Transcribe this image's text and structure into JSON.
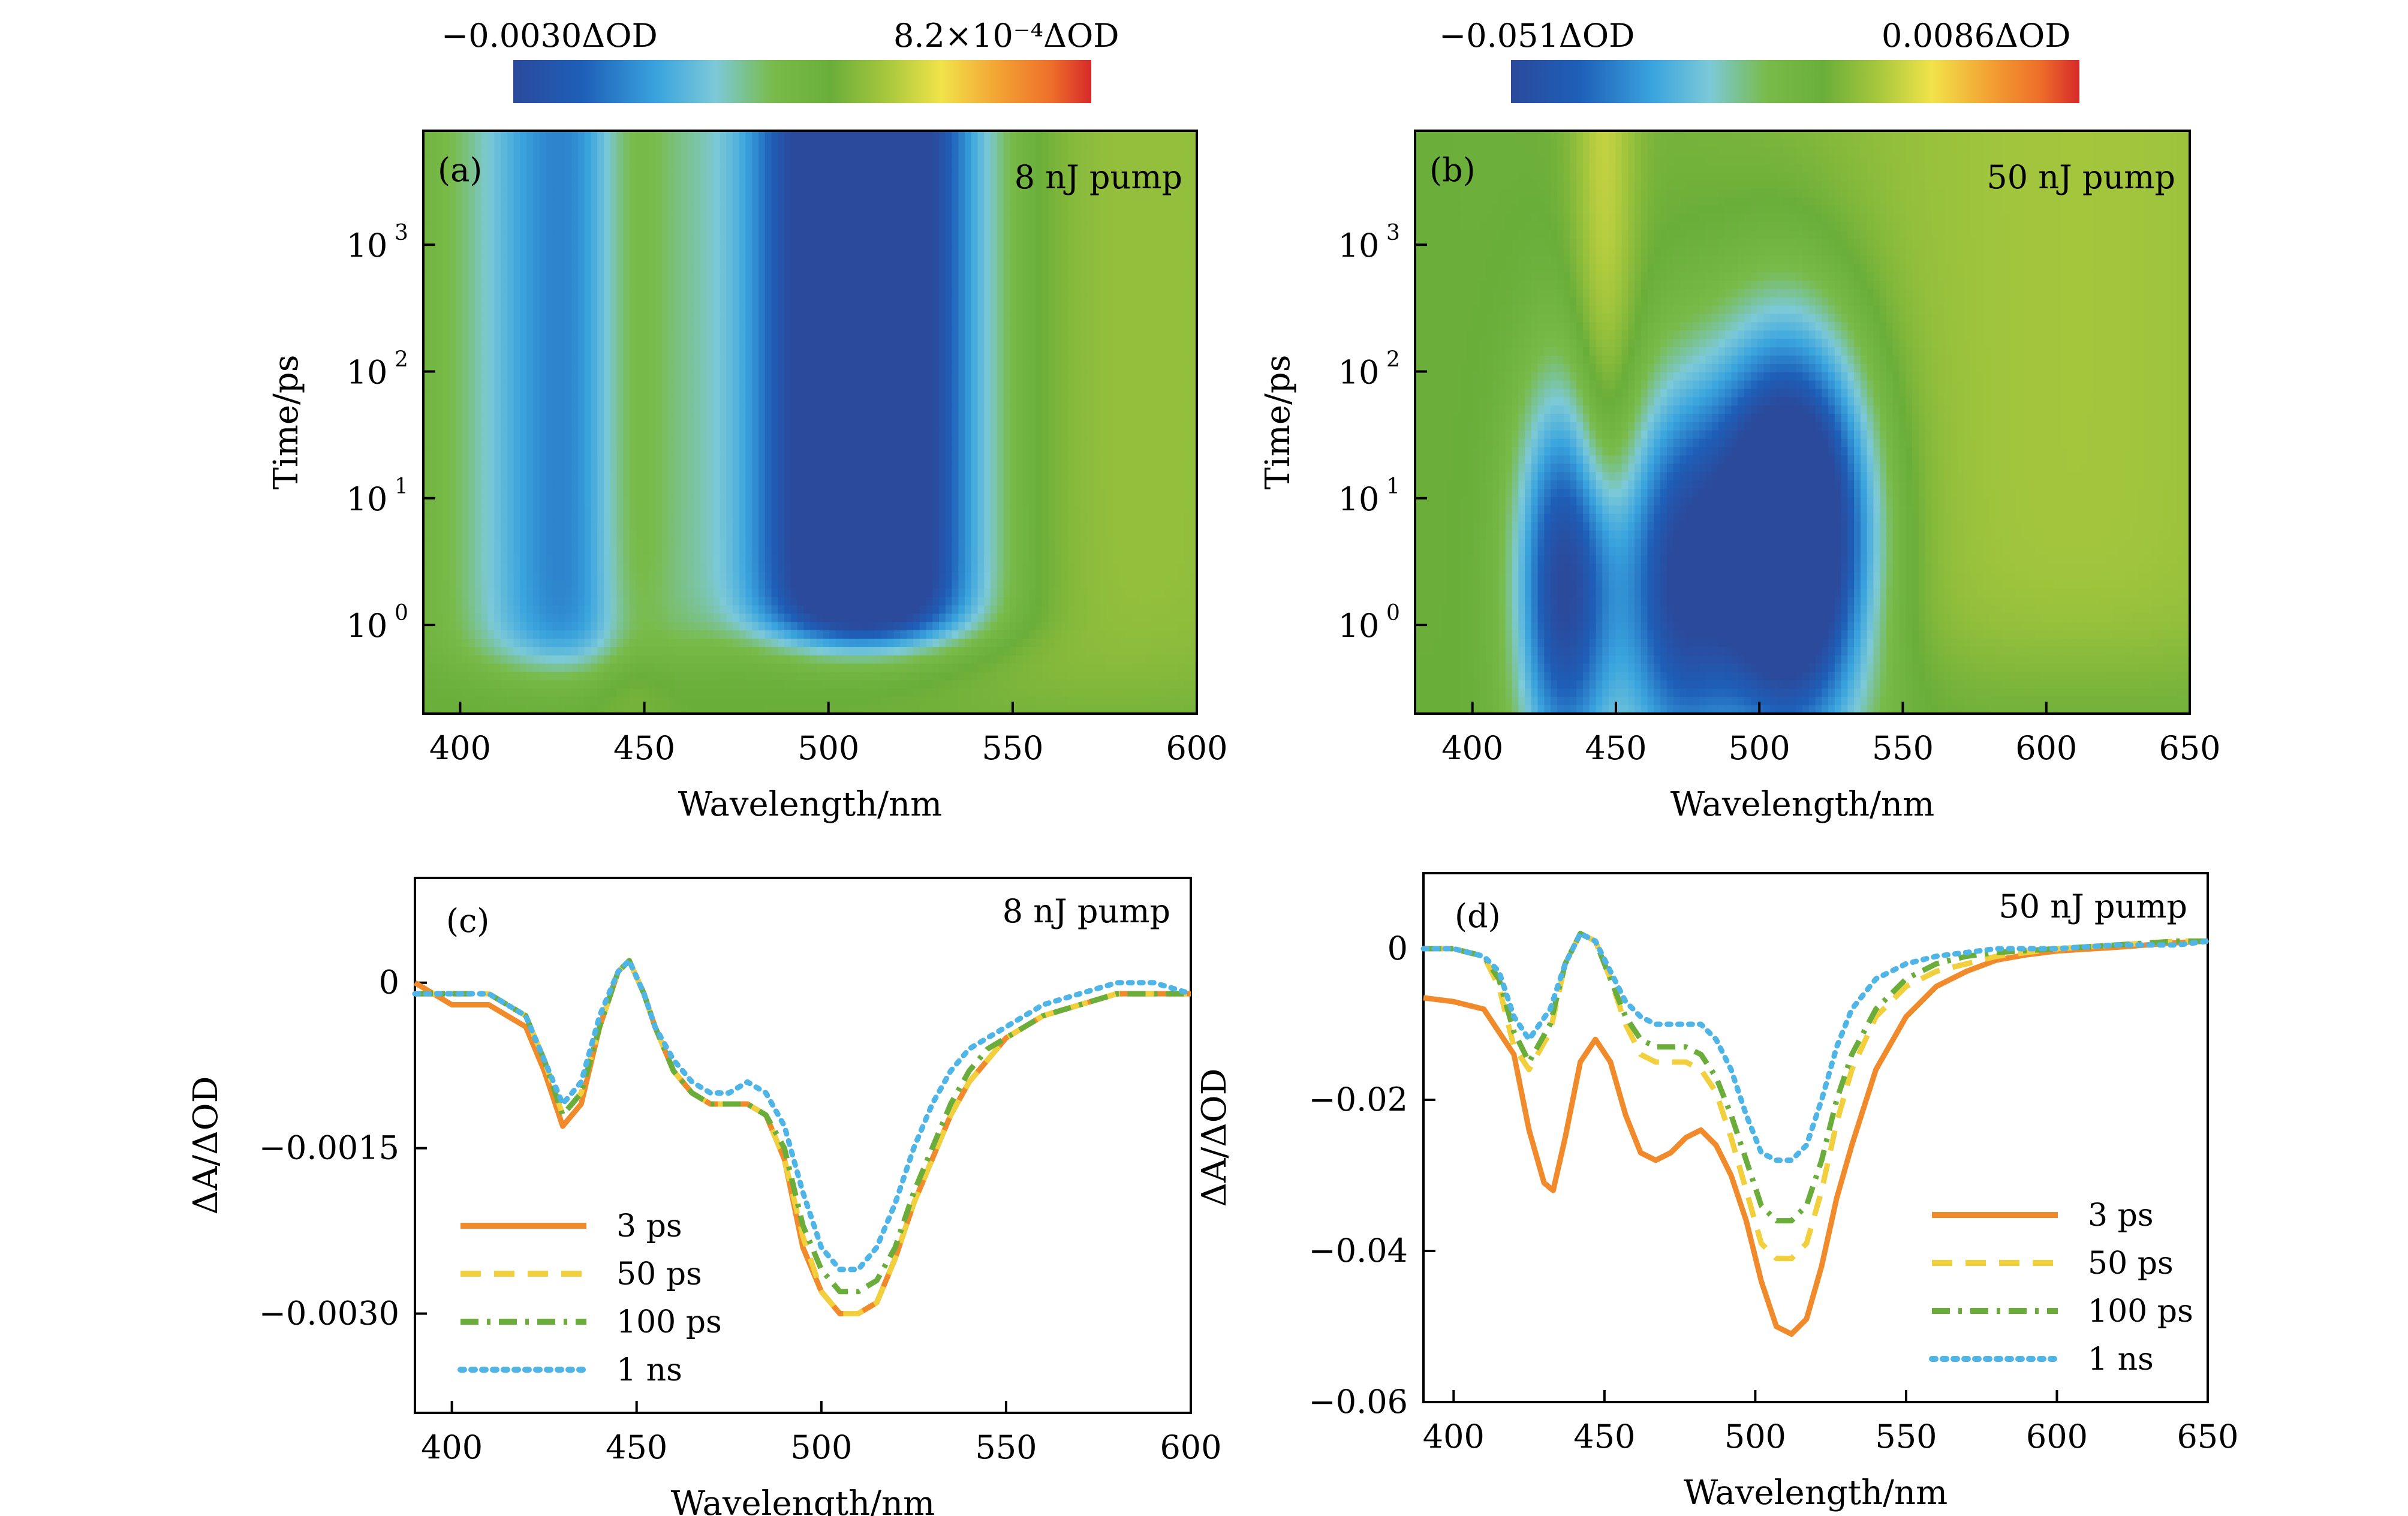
{
  "chart_data": [
    {
      "panel": "(a)",
      "type": "heatmap",
      "annotation": "8 nJ pump",
      "xlabel": "Wavelength/nm",
      "ylabel": "Time/ps",
      "xlim": [
        390,
        600
      ],
      "ylim_log10": [
        -0.7,
        3.9
      ],
      "y_scale": "log",
      "xticks": [
        400,
        450,
        500,
        550,
        600
      ],
      "yticks": [
        {
          "value": 1,
          "base": "10",
          "exp": "0"
        },
        {
          "value": 10,
          "base": "10",
          "exp": "1"
        },
        {
          "value": 100,
          "base": "10",
          "exp": "2"
        },
        {
          "value": 1000,
          "base": "10",
          "exp": "3"
        }
      ],
      "colorbar": {
        "min_label": "−0.0030ΔOD",
        "max_label": "8.2×10⁻⁴ΔOD",
        "min": -0.003,
        "max": 0.00082
      },
      "features": [
        {
          "kind": "bleach",
          "center_nm": 510,
          "width_nm": 22,
          "t_start_ps": 0.8,
          "depth": -0.003
        },
        {
          "kind": "bleach",
          "center_nm": 430,
          "width_nm": 20,
          "t_start_ps": 0.5,
          "depth": -0.0013
        },
        {
          "kind": "absorption",
          "center_nm": 446,
          "width_nm": 8,
          "t_start_ps": 0.5,
          "height": 0.0006
        },
        {
          "kind": "absorption",
          "center_nm": 575,
          "width_nm": 50,
          "t_start_ps": 0.3,
          "height": 0.0003
        }
      ]
    },
    {
      "panel": "(b)",
      "type": "heatmap",
      "annotation": "50 nJ pump",
      "xlabel": "Wavelength/nm",
      "ylabel": "Time/ps",
      "xlim": [
        380,
        650
      ],
      "ylim_log10": [
        -0.7,
        3.9
      ],
      "y_scale": "log",
      "xticks": [
        400,
        450,
        500,
        550,
        600,
        650
      ],
      "yticks": [
        {
          "value": 1,
          "base": "10",
          "exp": "0"
        },
        {
          "value": 10,
          "base": "10",
          "exp": "1"
        },
        {
          "value": 100,
          "base": "10",
          "exp": "2"
        },
        {
          "value": 1000,
          "base": "10",
          "exp": "3"
        }
      ],
      "colorbar": {
        "min_label": "−0.051ΔOD",
        "max_label": "0.0086ΔOD",
        "min": -0.051,
        "max": 0.0086
      },
      "features": [
        {
          "kind": "bleach",
          "center_nm": 510,
          "width_nm": 20,
          "t_peak_ps": 5,
          "depth": -0.051
        },
        {
          "kind": "bleach",
          "center_nm": 432,
          "width_nm": 12,
          "t_peak_ps": 2,
          "depth": -0.03
        },
        {
          "kind": "bleach",
          "center_nm": 470,
          "width_nm": 14,
          "t_peak_ps": 2,
          "depth": -0.025
        },
        {
          "kind": "absorption",
          "center_nm": 446,
          "width_nm": 8,
          "t_start_ps": 10,
          "height": 0.008
        },
        {
          "kind": "absorption",
          "center_nm": 610,
          "width_nm": 80,
          "t_start_ps": 0.5,
          "height": 0.006
        }
      ]
    },
    {
      "panel": "(c)",
      "type": "line",
      "annotation": "8 nJ pump",
      "xlabel": "Wavelength/nm",
      "ylabel": "ΔA/ΔOD",
      "xlim": [
        390,
        600
      ],
      "ylim": [
        -0.0039,
        0.00095
      ],
      "xticks": [
        400,
        450,
        500,
        550,
        600
      ],
      "yticks": [
        {
          "value": 0,
          "label": "0"
        },
        {
          "value": -0.0015,
          "label": "−0.0015"
        },
        {
          "value": -0.003,
          "label": "−0.0030"
        }
      ],
      "legend_position": "lower-left",
      "series": [
        {
          "name": "3 ps",
          "color": "#f08a2a",
          "dash": "solid",
          "x": [
            390,
            400,
            405,
            410,
            415,
            420,
            425,
            430,
            435,
            440,
            445,
            448,
            452,
            455,
            460,
            465,
            470,
            475,
            480,
            485,
            490,
            495,
            500,
            505,
            510,
            515,
            520,
            525,
            530,
            535,
            540,
            545,
            550,
            560,
            570,
            580,
            590,
            600
          ],
          "y": [
            0.0,
            -0.0002,
            -0.0002,
            -0.0002,
            -0.0003,
            -0.0004,
            -0.0008,
            -0.0013,
            -0.0011,
            -0.0004,
            0.0001,
            0.0002,
            -0.0001,
            -0.0004,
            -0.0008,
            -0.001,
            -0.0011,
            -0.0011,
            -0.0011,
            -0.0012,
            -0.0016,
            -0.0024,
            -0.0028,
            -0.003,
            -0.003,
            -0.0029,
            -0.0025,
            -0.002,
            -0.0016,
            -0.0012,
            -0.0009,
            -0.0007,
            -0.0005,
            -0.0003,
            -0.0002,
            -0.0001,
            -0.0001,
            -0.0001
          ]
        },
        {
          "name": "50 ps",
          "color": "#f2cf3c",
          "dash": "dashed",
          "x": [
            390,
            400,
            405,
            410,
            415,
            420,
            425,
            430,
            435,
            440,
            445,
            448,
            452,
            455,
            460,
            465,
            470,
            475,
            480,
            485,
            490,
            495,
            500,
            505,
            510,
            515,
            520,
            525,
            530,
            535,
            540,
            545,
            550,
            560,
            570,
            580,
            590,
            600
          ],
          "y": [
            -0.0001,
            -0.0001,
            -0.0001,
            -0.0001,
            -0.0002,
            -0.0003,
            -0.0007,
            -0.0012,
            -0.001,
            -0.0004,
            0.0001,
            0.0002,
            -0.0001,
            -0.0004,
            -0.0008,
            -0.001,
            -0.0011,
            -0.0011,
            -0.0011,
            -0.0012,
            -0.0016,
            -0.0023,
            -0.0028,
            -0.003,
            -0.003,
            -0.0029,
            -0.0025,
            -0.002,
            -0.0016,
            -0.0012,
            -0.0009,
            -0.0007,
            -0.0005,
            -0.0003,
            -0.0002,
            -0.0001,
            -0.0001,
            -0.0001
          ]
        },
        {
          "name": "100 ps",
          "color": "#6aad3a",
          "dash": "dashdot",
          "x": [
            390,
            400,
            405,
            410,
            415,
            420,
            425,
            430,
            435,
            440,
            445,
            448,
            452,
            455,
            460,
            465,
            470,
            475,
            480,
            485,
            490,
            495,
            500,
            505,
            510,
            515,
            520,
            525,
            530,
            535,
            540,
            545,
            550,
            560,
            570,
            580,
            590,
            600
          ],
          "y": [
            -0.0001,
            -0.0001,
            -0.0001,
            -0.0001,
            -0.0002,
            -0.0003,
            -0.0007,
            -0.0012,
            -0.001,
            -0.0004,
            0.0001,
            0.0002,
            -0.0001,
            -0.0004,
            -0.0008,
            -0.001,
            -0.0011,
            -0.0011,
            -0.0011,
            -0.0012,
            -0.0015,
            -0.0022,
            -0.0026,
            -0.0028,
            -0.0028,
            -0.0027,
            -0.0024,
            -0.0019,
            -0.0015,
            -0.0011,
            -0.0008,
            -0.0006,
            -0.0005,
            -0.0003,
            -0.0002,
            -0.0001,
            -0.0001,
            -0.0001
          ]
        },
        {
          "name": "1 ns",
          "color": "#4fb5e6",
          "dash": "dotted",
          "x": [
            390,
            400,
            405,
            410,
            415,
            420,
            425,
            430,
            435,
            440,
            445,
            448,
            452,
            455,
            460,
            465,
            470,
            475,
            480,
            485,
            490,
            495,
            500,
            505,
            510,
            515,
            520,
            525,
            530,
            535,
            540,
            545,
            550,
            560,
            570,
            580,
            590,
            600
          ],
          "y": [
            -0.0001,
            -0.0001,
            -0.0001,
            -0.0001,
            -0.0002,
            -0.0003,
            -0.0007,
            -0.0011,
            -0.0009,
            -0.0003,
            0.0001,
            0.0002,
            -0.0001,
            -0.0004,
            -0.0007,
            -0.0009,
            -0.001,
            -0.001,
            -0.0009,
            -0.001,
            -0.0013,
            -0.0019,
            -0.0024,
            -0.0026,
            -0.0026,
            -0.0024,
            -0.002,
            -0.0015,
            -0.0011,
            -0.0008,
            -0.0006,
            -0.0005,
            -0.0004,
            -0.0002,
            -0.0001,
            0.0,
            0.0,
            -0.0001
          ]
        }
      ]
    },
    {
      "panel": "(d)",
      "type": "line",
      "annotation": "50 nJ pump",
      "xlabel": "Wavelength/nm",
      "ylabel": "ΔA/ΔOD",
      "xlim": [
        390,
        650
      ],
      "ylim": [
        -0.06,
        0.01
      ],
      "xticks": [
        400,
        450,
        500,
        550,
        600,
        650
      ],
      "yticks": [
        {
          "value": 0,
          "label": "0"
        },
        {
          "value": -0.02,
          "label": "−0.02"
        },
        {
          "value": -0.04,
          "label": "−0.04"
        },
        {
          "value": -0.06,
          "label": "−0.06"
        }
      ],
      "legend_position": "lower-right",
      "series": [
        {
          "name": "3 ps",
          "color": "#f08a2a",
          "dash": "solid",
          "x": [
            390,
            400,
            410,
            420,
            425,
            430,
            433,
            437,
            442,
            447,
            452,
            457,
            462,
            467,
            472,
            477,
            482,
            487,
            492,
            497,
            502,
            507,
            512,
            517,
            522,
            527,
            532,
            540,
            550,
            560,
            570,
            580,
            590,
            600,
            620,
            640,
            650
          ],
          "y": [
            -0.0065,
            -0.007,
            -0.008,
            -0.014,
            -0.024,
            -0.031,
            -0.032,
            -0.025,
            -0.015,
            -0.012,
            -0.015,
            -0.022,
            -0.027,
            -0.028,
            -0.027,
            -0.025,
            -0.024,
            -0.026,
            -0.03,
            -0.036,
            -0.044,
            -0.05,
            -0.051,
            -0.049,
            -0.042,
            -0.033,
            -0.026,
            -0.016,
            -0.009,
            -0.005,
            -0.003,
            -0.0015,
            -0.0008,
            -0.0003,
            0.0002,
            0.0008,
            0.001
          ]
        },
        {
          "name": "50 ps",
          "color": "#f2cf3c",
          "dash": "dashed",
          "x": [
            390,
            400,
            410,
            415,
            420,
            425,
            432,
            437,
            442,
            447,
            452,
            457,
            462,
            467,
            472,
            477,
            482,
            487,
            492,
            497,
            502,
            507,
            512,
            517,
            522,
            527,
            532,
            540,
            550,
            560,
            570,
            580,
            600,
            620,
            640,
            650
          ],
          "y": [
            0.0,
            0.0,
            -0.001,
            -0.005,
            -0.013,
            -0.016,
            -0.011,
            -0.002,
            0.002,
            0.001,
            -0.004,
            -0.01,
            -0.014,
            -0.015,
            -0.015,
            -0.015,
            -0.016,
            -0.019,
            -0.025,
            -0.032,
            -0.039,
            -0.041,
            -0.041,
            -0.039,
            -0.032,
            -0.023,
            -0.016,
            -0.009,
            -0.005,
            -0.003,
            -0.002,
            -0.001,
            0.0,
            0.0005,
            0.001,
            0.001
          ]
        },
        {
          "name": "100 ps",
          "color": "#6aad3a",
          "dash": "dashdot",
          "x": [
            390,
            400,
            410,
            415,
            420,
            425,
            432,
            437,
            442,
            447,
            452,
            457,
            462,
            467,
            472,
            477,
            482,
            487,
            492,
            497,
            502,
            507,
            512,
            517,
            522,
            527,
            532,
            540,
            550,
            560,
            570,
            580,
            600,
            620,
            640,
            650
          ],
          "y": [
            0.0,
            0.0,
            -0.001,
            -0.004,
            -0.011,
            -0.015,
            -0.01,
            -0.002,
            0.002,
            0.001,
            -0.004,
            -0.009,
            -0.012,
            -0.013,
            -0.013,
            -0.013,
            -0.014,
            -0.017,
            -0.022,
            -0.028,
            -0.034,
            -0.036,
            -0.036,
            -0.034,
            -0.028,
            -0.02,
            -0.014,
            -0.008,
            -0.004,
            -0.002,
            -0.001,
            -0.0005,
            0.0,
            0.0005,
            0.001,
            0.001
          ]
        },
        {
          "name": "1 ns",
          "color": "#4fb5e6",
          "dash": "dotted",
          "x": [
            390,
            400,
            410,
            415,
            420,
            425,
            432,
            437,
            442,
            447,
            452,
            457,
            462,
            467,
            472,
            477,
            482,
            487,
            492,
            497,
            502,
            507,
            512,
            517,
            522,
            527,
            532,
            540,
            550,
            560,
            570,
            580,
            600,
            620,
            640,
            650
          ],
          "y": [
            0.0,
            0.0,
            -0.001,
            -0.003,
            -0.009,
            -0.012,
            -0.008,
            -0.002,
            0.002,
            0.001,
            -0.003,
            -0.007,
            -0.009,
            -0.01,
            -0.01,
            -0.01,
            -0.01,
            -0.012,
            -0.016,
            -0.022,
            -0.027,
            -0.028,
            -0.028,
            -0.026,
            -0.02,
            -0.013,
            -0.008,
            -0.004,
            -0.002,
            -0.001,
            -0.0005,
            0.0,
            0.0,
            0.0005,
            0.0005,
            0.001
          ]
        }
      ]
    }
  ]
}
